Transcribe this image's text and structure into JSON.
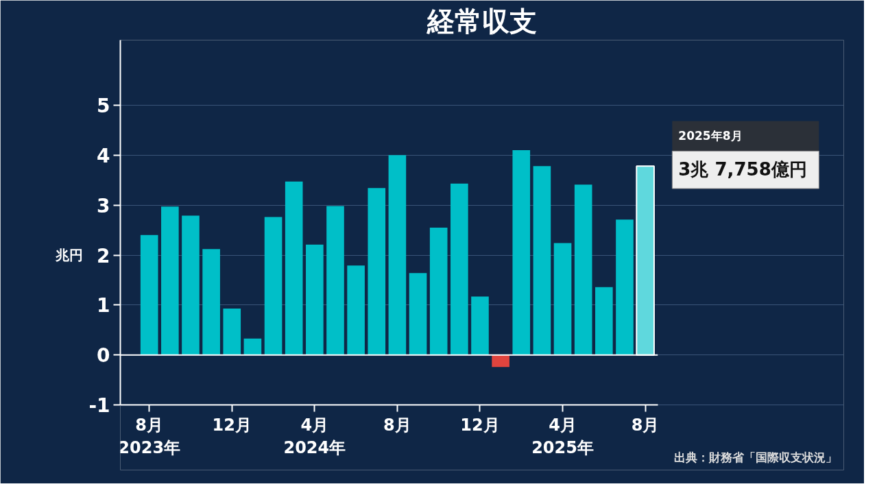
{
  "chart_data": {
    "type": "bar",
    "title": "経常収支",
    "ylabel": "兆円",
    "categories": [
      "8月\n2023年",
      null,
      null,
      null,
      "12月",
      null,
      null,
      null,
      "4月\n2024年",
      null,
      null,
      null,
      "8月",
      null,
      null,
      null,
      "12月",
      null,
      null,
      null,
      "4月\n2025年",
      null,
      null,
      null,
      "8月"
    ],
    "values": [
      2.4,
      2.97,
      2.79,
      2.12,
      0.93,
      0.33,
      2.76,
      3.47,
      2.21,
      2.98,
      1.79,
      3.34,
      4.0,
      1.64,
      2.55,
      3.43,
      1.17,
      -0.24,
      4.1,
      3.78,
      2.24,
      3.41,
      1.36,
      2.71,
      3.78
    ],
    "colors": [
      "#00bfc8",
      "#00bfc8",
      "#00bfc8",
      "#00bfc8",
      "#00bfc8",
      "#00bfc8",
      "#00bfc8",
      "#00bfc8",
      "#00bfc8",
      "#00bfc8",
      "#00bfc8",
      "#00bfc8",
      "#00bfc8",
      "#00bfc8",
      "#00bfc8",
      "#00bfc8",
      "#00bfc8",
      "#e0443e",
      "#00bfc8",
      "#00bfc8",
      "#00bfc8",
      "#00bfc8",
      "#00bfc8",
      "#00bfc8",
      "#5fd8dd"
    ],
    "ylim": [
      -1,
      6.3
    ],
    "yticks": [
      -1,
      0,
      1,
      2,
      3,
      4,
      5
    ],
    "grid": "y",
    "ref_lines": [
      {
        "axis": "y",
        "value": 0,
        "color": "#ffffff"
      }
    ],
    "annotations": [
      "2025年8月",
      "3兆 7,758億円",
      "出典：財務省「国際収支状況」"
    ]
  }
}
